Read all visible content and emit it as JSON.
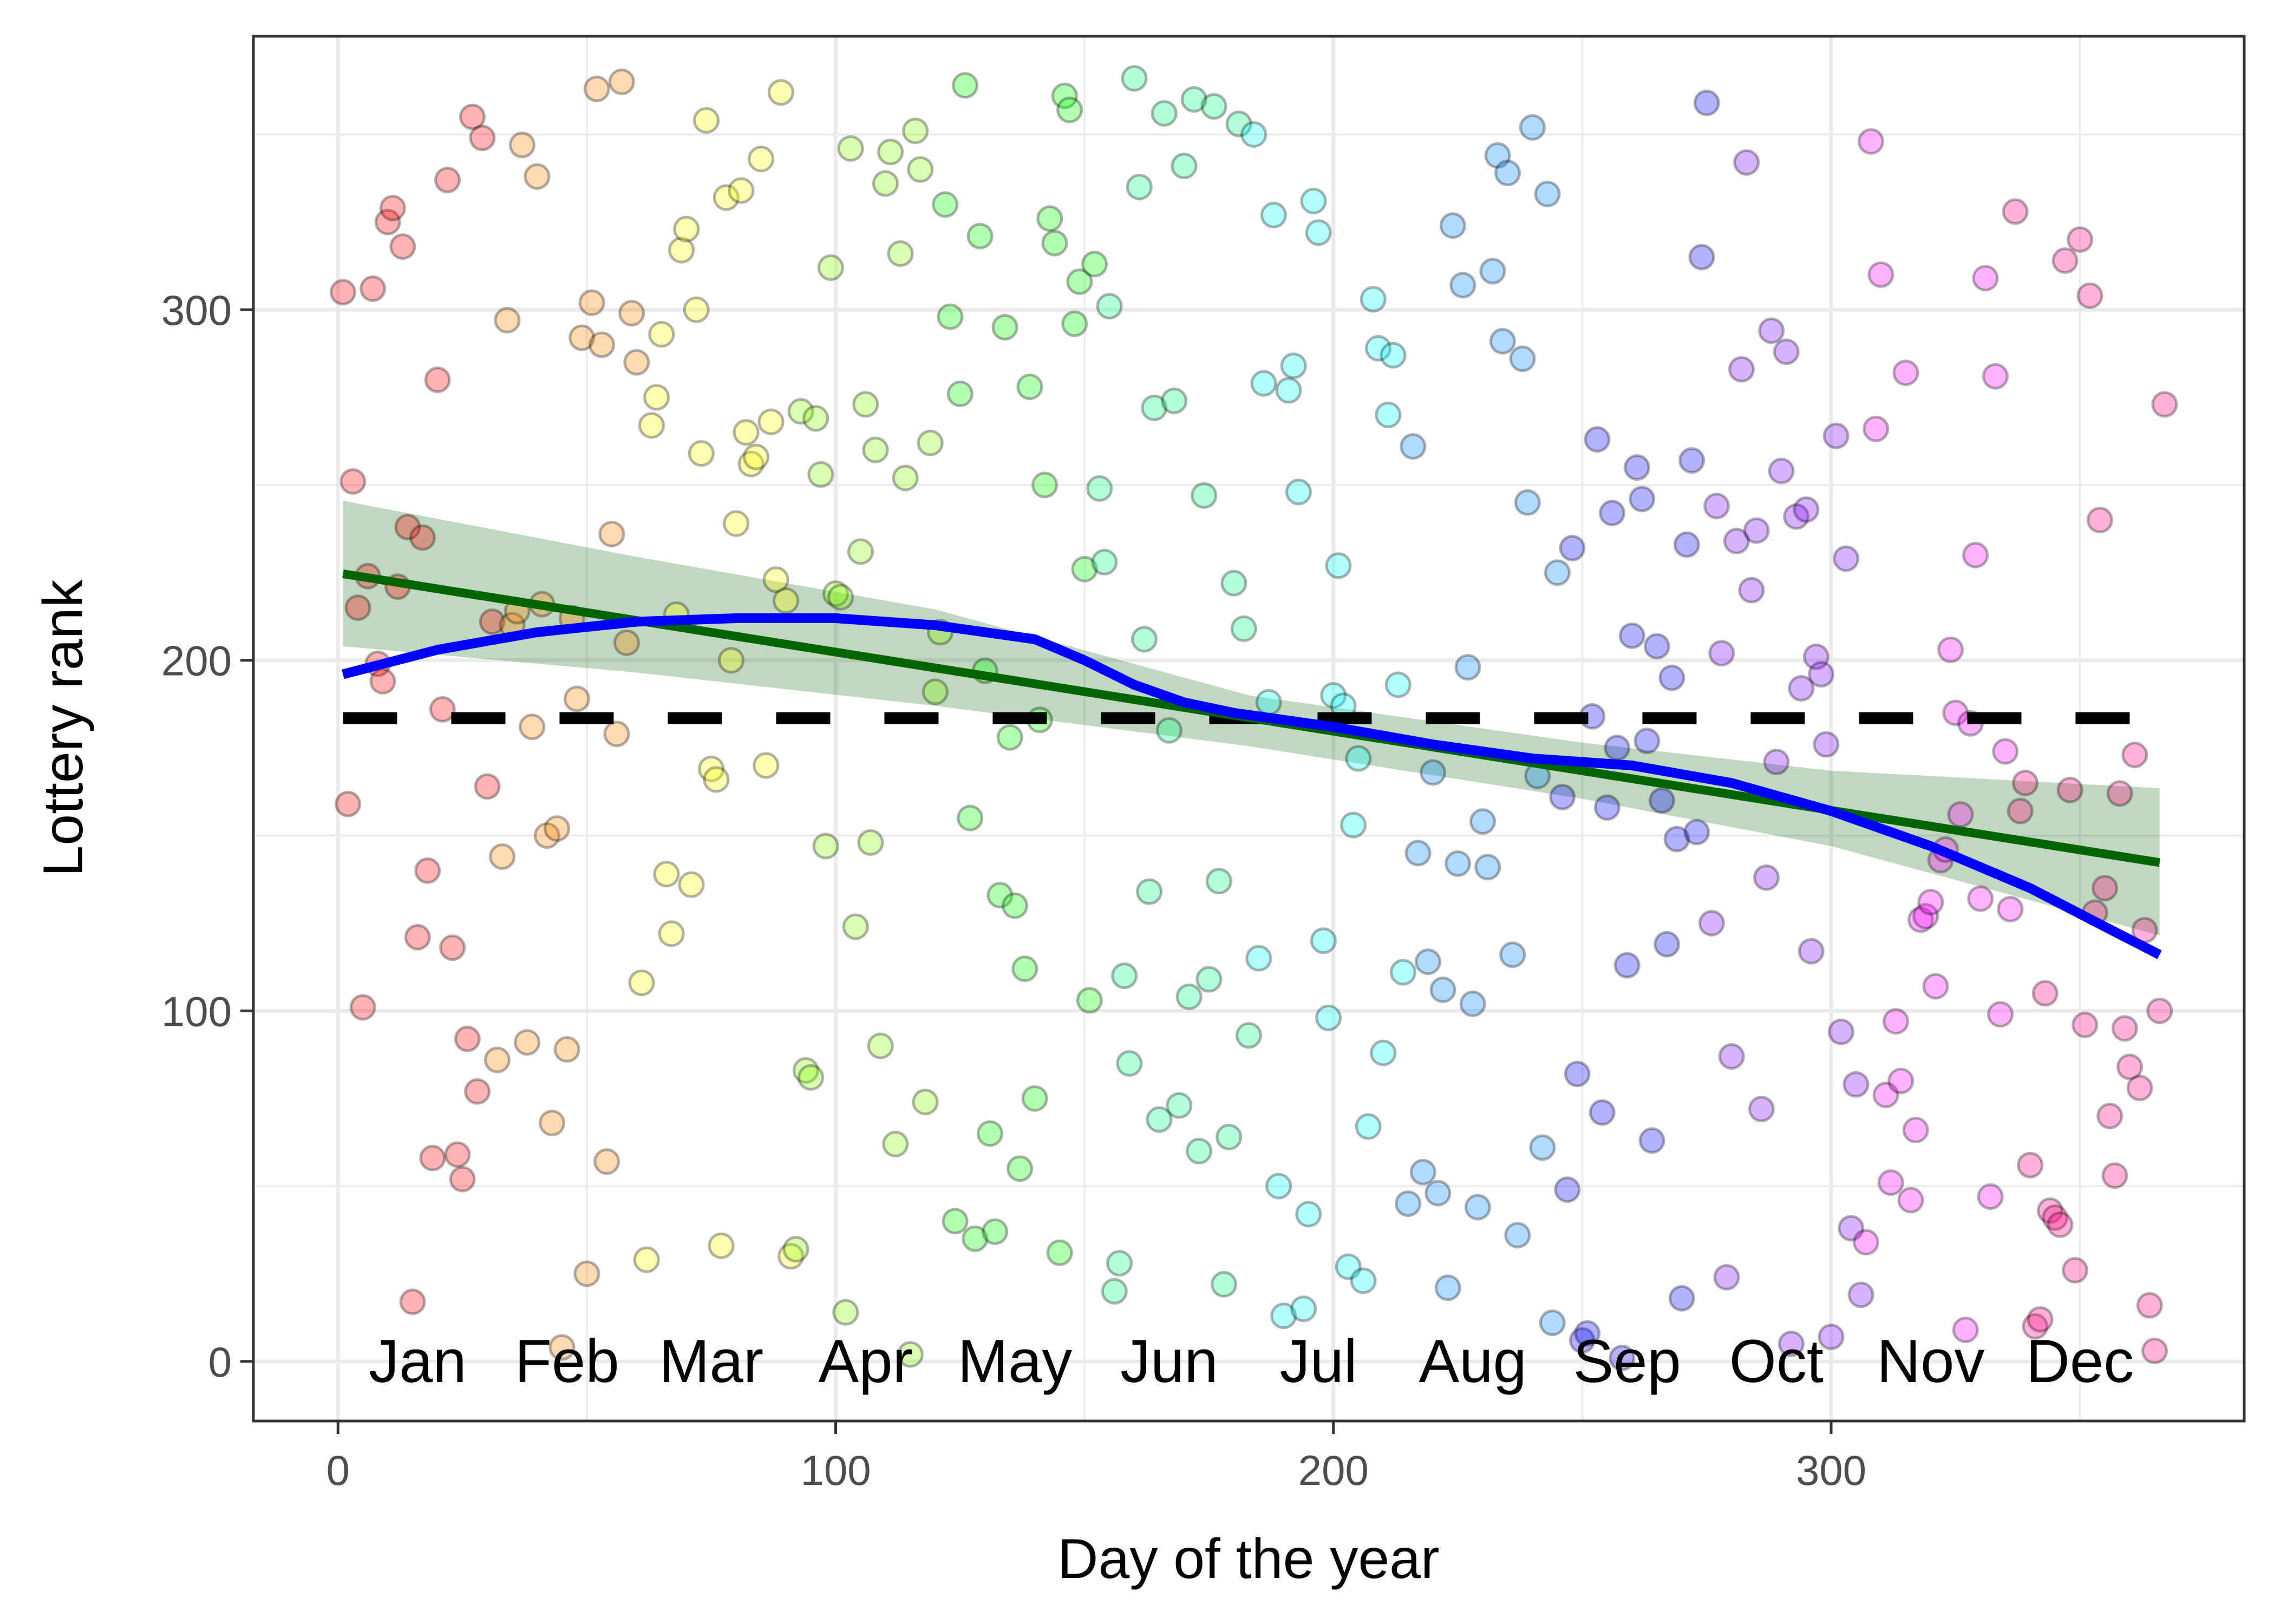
{
  "chart_data": {
    "type": "scatter",
    "title": "",
    "xlabel": "Day of the year",
    "ylabel": "Lottery rank",
    "xlim": [
      -17,
      383
    ],
    "ylim": [
      -17,
      378
    ],
    "x_ticks": [
      0,
      100,
      200,
      300
    ],
    "y_ticks": [
      0,
      100,
      200,
      300
    ],
    "grid": true,
    "legend": "none",
    "month_labels": [
      {
        "label": "Jan",
        "x": 16
      },
      {
        "label": "Feb",
        "x": 46
      },
      {
        "label": "Mar",
        "x": 75
      },
      {
        "label": "Apr",
        "x": 106
      },
      {
        "label": "May",
        "x": 136
      },
      {
        "label": "Jun",
        "x": 167
      },
      {
        "label": "Jul",
        "x": 197
      },
      {
        "label": "Aug",
        "x": 228
      },
      {
        "label": "Sep",
        "x": 259
      },
      {
        "label": "Oct",
        "x": 289
      },
      {
        "label": "Nov",
        "x": 320
      },
      {
        "label": "Dec",
        "x": 350
      }
    ],
    "month_colors": [
      "#FF0000",
      "#FF8000",
      "#FFFF00",
      "#80FF00",
      "#00FF00",
      "#00FF80",
      "#00FFFF",
      "#0080FF",
      "#0000FF",
      "#8000FF",
      "#FF00FF",
      "#FF0080"
    ],
    "point_alpha": 0.3,
    "mean_line": {
      "y": 183.5,
      "style": "dashed",
      "color": "#000000"
    },
    "linear_fit": {
      "color": "#006400",
      "intercept": 224.9,
      "slope": -0.2257,
      "ci_color": "#006400",
      "ci_alpha": 0.25,
      "ci_x": [
        1,
        60,
        120,
        183,
        250,
        300,
        366
      ],
      "ci_low": [
        204.0,
        196.5,
        187.0,
        175.5,
        160.5,
        147.0,
        121.5
      ],
      "ci_high": [
        245.5,
        229.5,
        214.5,
        190.0,
        176.5,
        168.5,
        163.5
      ]
    },
    "loess_fit": {
      "color": "#0000FF",
      "x": [
        1,
        20,
        40,
        60,
        80,
        100,
        120,
        140,
        150,
        160,
        170,
        180,
        200,
        220,
        240,
        260,
        280,
        300,
        320,
        340,
        355,
        366
      ],
      "y": [
        196,
        203,
        208,
        211,
        212,
        212,
        210,
        206,
        200,
        193,
        188,
        185,
        181,
        176,
        172,
        170,
        165,
        157,
        147,
        135,
        124,
        116
      ]
    },
    "series": [
      {
        "name": "Jan",
        "month": 1,
        "ranks": [
          305,
          159,
          251,
          215,
          101,
          224,
          306,
          199,
          194,
          325,
          329,
          221,
          318,
          238,
          17,
          121,
          235,
          140,
          58,
          280,
          186,
          337,
          118,
          59,
          52,
          92,
          355,
          77,
          349,
          164,
          211
        ]
      },
      {
        "name": "Feb",
        "month": 2,
        "ranks": [
          86,
          144,
          297,
          210,
          214,
          347,
          91,
          181,
          338,
          216,
          150,
          68,
          152,
          4,
          89,
          212,
          189,
          292,
          25,
          302,
          363,
          290,
          57,
          236,
          179,
          365,
          205,
          299,
          285
        ]
      },
      {
        "name": "Mar",
        "month": 3,
        "ranks": [
          108,
          29,
          267,
          275,
          293,
          139,
          122,
          213,
          317,
          323,
          136,
          300,
          259,
          354,
          169,
          166,
          33,
          332,
          200,
          239,
          334,
          265,
          256,
          258,
          343,
          170,
          268,
          223,
          362,
          217,
          30
        ]
      },
      {
        "name": "Apr",
        "month": 4,
        "ranks": [
          32,
          271,
          83,
          81,
          269,
          253,
          147,
          312,
          219,
          218,
          14,
          346,
          124,
          231,
          273,
          148,
          260,
          90,
          336,
          345,
          62,
          316,
          252,
          2,
          351,
          340,
          74,
          262,
          191,
          208
        ]
      },
      {
        "name": "May",
        "month": 5,
        "ranks": [
          330,
          298,
          40,
          276,
          364,
          155,
          35,
          321,
          197,
          65,
          37,
          133,
          295,
          178,
          130,
          55,
          112,
          278,
          75,
          183,
          250,
          326,
          319,
          31,
          361,
          357,
          296,
          308,
          226,
          103,
          313
        ]
      },
      {
        "name": "Jun",
        "month": 6,
        "ranks": [
          249,
          228,
          301,
          20,
          28,
          110,
          85,
          366,
          335,
          206,
          134,
          272,
          69,
          356,
          180,
          274,
          73,
          341,
          104,
          360,
          60,
          247,
          109,
          358,
          137,
          22,
          64,
          222,
          353,
          209,
          93
        ]
      },
      {
        "name": "Jul",
        "month": 7,
        "ranks": [
          350,
          115,
          279,
          188,
          327,
          50,
          13,
          277,
          284,
          248,
          15,
          42,
          331,
          322,
          120,
          98,
          190,
          227,
          187,
          27,
          153,
          172,
          23,
          67,
          303,
          289,
          88,
          270,
          287,
          193,
          111
        ]
      },
      {
        "name": "Aug",
        "month": 8,
        "ranks": [
          45,
          261,
          145,
          54,
          114,
          168,
          48,
          106,
          21,
          324,
          142,
          307,
          198,
          102,
          44,
          154,
          141,
          311,
          344,
          291,
          339,
          116,
          36,
          286,
          245,
          352,
          167,
          61,
          333,
          11,
          225
        ]
      },
      {
        "name": "Sep",
        "month": 9,
        "ranks": [
          161,
          49,
          232,
          82,
          6,
          8,
          184,
          263,
          71,
          158,
          242,
          175,
          1,
          113,
          207,
          255,
          246,
          177,
          63,
          204,
          160,
          119,
          195,
          149,
          18,
          233,
          257,
          151,
          315,
          359
        ]
      },
      {
        "name": "Oct",
        "month": 10,
        "ranks": [
          125,
          244,
          202,
          24,
          87,
          234,
          283,
          342,
          220,
          237,
          72,
          138,
          294,
          171,
          254,
          288,
          5,
          241,
          192,
          243,
          117,
          201,
          196,
          176,
          7,
          264,
          94,
          229,
          38,
          79,
          19
        ]
      },
      {
        "name": "Nov",
        "month": 11,
        "ranks": [
          34,
          348,
          266,
          310,
          76,
          51,
          97,
          80,
          282,
          46,
          66,
          126,
          127,
          131,
          107,
          143,
          146,
          203,
          185,
          156,
          9,
          182,
          230,
          132,
          309,
          47,
          281,
          99,
          174,
          129
        ]
      },
      {
        "name": "Dec",
        "month": 12,
        "ranks": [
          328,
          157,
          165,
          56,
          10,
          12,
          105,
          43,
          41,
          39,
          314,
          163,
          26,
          320,
          96,
          304,
          128,
          240,
          135,
          70,
          53,
          162,
          95,
          84,
          173,
          78,
          123,
          16,
          3,
          100,
          273
        ]
      }
    ]
  }
}
